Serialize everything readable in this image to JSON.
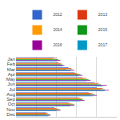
{
  "chart_data": {
    "type": "bar",
    "orientation": "horizontal",
    "categories": [
      "Jan",
      "Feb",
      "Mar",
      "Apr",
      "May",
      "Jun",
      "Jul",
      "Aug",
      "Sep",
      "Oct",
      "Nov",
      "Dec"
    ],
    "series": [
      {
        "name": "2012",
        "color": "#3366cc",
        "values": [
          38,
          42,
          52,
          58,
          66,
          78,
          80,
          72,
          62,
          52,
          38,
          30
        ]
      },
      {
        "name": "2013",
        "color": "#dc3912",
        "values": [
          40,
          45,
          55,
          60,
          70,
          82,
          86,
          76,
          64,
          54,
          40,
          32
        ]
      },
      {
        "name": "2014",
        "color": "#ff9900",
        "values": [
          36,
          44,
          50,
          62,
          68,
          80,
          84,
          74,
          66,
          56,
          42,
          30
        ]
      },
      {
        "name": "2015",
        "color": "#109618",
        "values": [
          42,
          46,
          56,
          64,
          72,
          84,
          88,
          78,
          66,
          58,
          44,
          34
        ]
      },
      {
        "name": "2016",
        "color": "#990099",
        "values": [
          44,
          48,
          58,
          66,
          74,
          90,
          92,
          80,
          68,
          58,
          44,
          34
        ]
      },
      {
        "name": "2017",
        "color": "#0099c6",
        "values": [
          40,
          46,
          54,
          62,
          70,
          86,
          88,
          76,
          64,
          54,
          40,
          32
        ]
      }
    ],
    "xlim": [
      0,
      100
    ],
    "xticks": [
      0,
      20,
      40,
      60,
      80,
      100
    ],
    "grid": true,
    "legend": "top",
    "tick_labels": "y"
  }
}
